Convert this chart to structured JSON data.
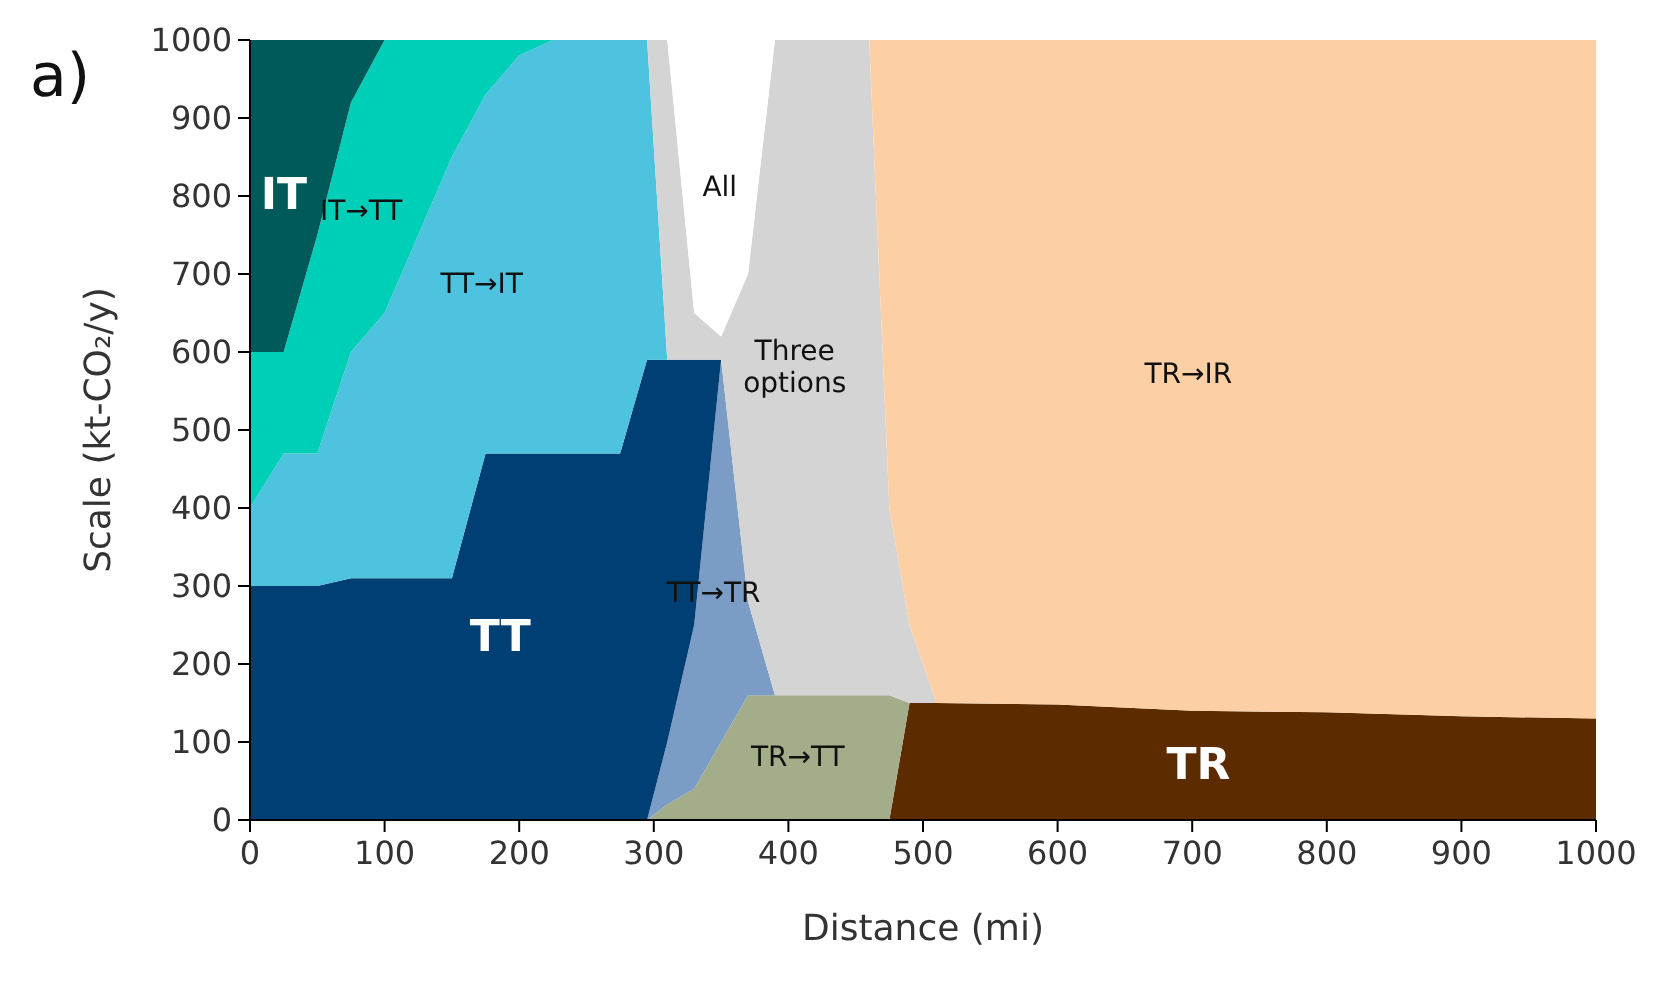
{
  "chart_data": {
    "type": "area",
    "stacked": true,
    "xlabel": "Distance (mi)",
    "ylabel": "Scale (kt-CO₂/y)",
    "annotations": [
      "a)"
    ],
    "x": [
      0,
      25,
      50,
      75,
      100,
      125,
      150,
      175,
      200,
      225,
      275,
      295,
      310,
      330,
      350,
      370,
      390,
      460,
      475,
      490,
      510,
      600,
      700,
      800,
      900,
      1000
    ],
    "xlim": [
      0,
      1000
    ],
    "ylim": [
      0,
      1000
    ],
    "xticks": [
      0,
      100,
      200,
      300,
      400,
      500,
      600,
      700,
      800,
      900,
      1000
    ],
    "yticks": [
      0,
      100,
      200,
      300,
      400,
      500,
      600,
      700,
      800,
      900,
      1000
    ],
    "grid": false,
    "legend": false,
    "series": [
      {
        "name": "TR",
        "color": "#5c2b00",
        "values": [
          null,
          null,
          null,
          null,
          null,
          null,
          null,
          null,
          null,
          null,
          null,
          null,
          null,
          null,
          null,
          null,
          null,
          null,
          0,
          150,
          150,
          148,
          140,
          138,
          133,
          130
        ]
      },
      {
        "name": "TR→TT",
        "color": "#a3ad8a",
        "values": [
          null,
          null,
          null,
          null,
          null,
          null,
          null,
          null,
          null,
          null,
          null,
          0,
          20,
          40,
          100,
          160,
          160,
          160,
          160,
          0,
          null,
          null,
          null,
          null,
          null,
          null
        ]
      },
      {
        "name": "TT→TR",
        "color": "#7b9cc4",
        "values": [
          null,
          null,
          null,
          null,
          null,
          null,
          null,
          null,
          null,
          null,
          null,
          0,
          80,
          210,
          490,
          120,
          0,
          null,
          null,
          null,
          null,
          null,
          null,
          null,
          null,
          null
        ]
      },
      {
        "name": "TT",
        "color": "#003f73",
        "values": [
          300,
          300,
          300,
          310,
          310,
          310,
          310,
          470,
          470,
          470,
          470,
          590,
          490,
          340,
          0,
          null,
          null,
          null,
          null,
          null,
          null,
          null,
          null,
          null,
          null,
          null
        ]
      },
      {
        "name": "TT→IT",
        "color": "#4ec3df",
        "values": [
          100,
          170,
          170,
          290,
          340,
          440,
          540,
          460,
          510,
          530,
          530,
          410,
          0,
          null,
          null,
          null,
          null,
          null,
          null,
          null,
          null,
          null,
          null,
          null,
          null,
          null
        ]
      },
      {
        "name": "IT→TT",
        "color": "#00cfb7",
        "values": [
          200,
          130,
          280,
          320,
          350,
          250,
          150,
          70,
          20,
          0,
          null,
          null,
          null,
          null,
          null,
          null,
          null,
          null,
          null,
          null,
          null,
          null,
          null,
          null,
          null,
          null
        ]
      },
      {
        "name": "IT",
        "color": "#005a5a",
        "values": [
          400,
          400,
          250,
          80,
          0,
          null,
          null,
          null,
          null,
          null,
          null,
          null,
          null,
          null,
          null,
          null,
          null,
          null,
          null,
          null,
          null,
          null,
          null,
          null,
          null,
          null
        ]
      },
      {
        "name": "Three options",
        "color": "#d4d4d4",
        "values": [
          null,
          null,
          null,
          null,
          null,
          null,
          null,
          null,
          null,
          null,
          null,
          0,
          410,
          60,
          30,
          420,
          840,
          840,
          240,
          100,
          0,
          null,
          null,
          null,
          null,
          null
        ]
      },
      {
        "name": "All",
        "color": "#ffffff",
        "values": [
          null,
          null,
          null,
          null,
          null,
          null,
          null,
          null,
          null,
          null,
          null,
          null,
          0,
          350,
          380,
          300,
          0,
          null,
          null,
          null,
          null,
          null,
          null,
          null,
          null,
          null
        ]
      },
      {
        "name": "TR→IR",
        "color": "#fccfa4",
        "values": [
          null,
          null,
          null,
          null,
          null,
          null,
          null,
          null,
          null,
          null,
          null,
          null,
          null,
          null,
          null,
          null,
          null,
          0,
          600,
          750,
          850,
          852,
          860,
          862,
          867,
          870
        ]
      }
    ]
  }
}
